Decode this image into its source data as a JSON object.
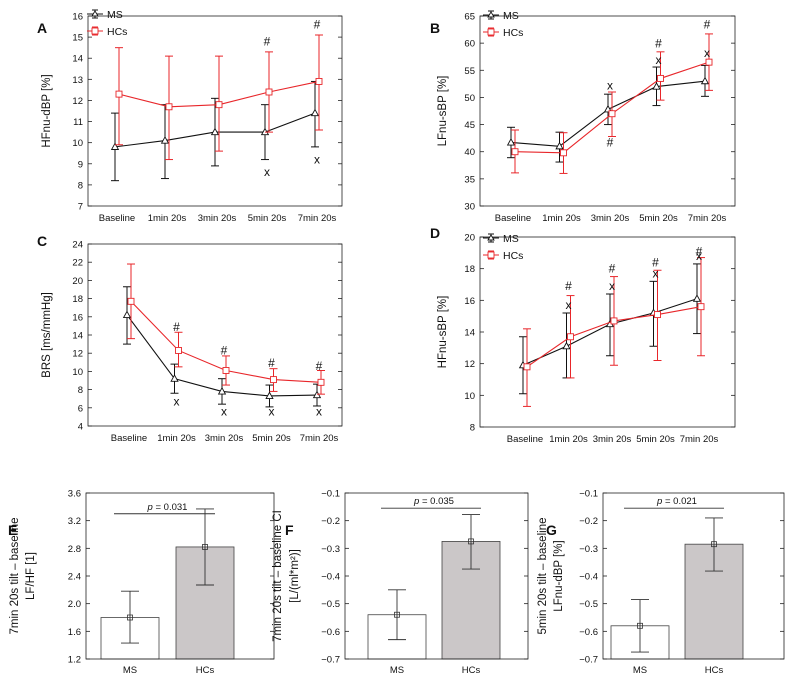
{
  "figure": {
    "background": "#ffffff"
  },
  "colors": {
    "ms": "#111111",
    "hc": "#e8262a",
    "bar_ms": "#ffffff",
    "bar_hc": "#cbc7c8"
  },
  "chart_data": [
    {
      "id": "A",
      "panel_label": "A",
      "type": "line",
      "ylabel": "HFnu-dBP [%]",
      "categories": [
        "Baseline",
        "1min 20s",
        "3min 20s",
        "5min 20s",
        "7min 20s"
      ],
      "ylim": [
        7,
        16
      ],
      "yticks": [
        "7",
        "8",
        "9",
        "10",
        "11",
        "12",
        "13",
        "14",
        "15",
        "16"
      ],
      "legend": [
        "MS",
        "HCs"
      ],
      "legend_position": "top-left",
      "series": [
        {
          "name": "MS",
          "values": [
            9.8,
            10.1,
            10.5,
            10.5,
            11.4
          ],
          "low": [
            8.2,
            8.3,
            8.9,
            9.2,
            9.8
          ],
          "high": [
            11.4,
            11.8,
            12.1,
            11.8,
            12.9
          ]
        },
        {
          "name": "HCs",
          "values": [
            12.3,
            11.7,
            11.8,
            12.4,
            12.9
          ],
          "low": [
            9.9,
            9.2,
            9.6,
            10.5,
            10.6
          ],
          "high": [
            14.5,
            14.1,
            14.1,
            14.3,
            15.1
          ]
        }
      ],
      "annotations": [
        {
          "text": "#",
          "category": "5min 20s",
          "y": 14.8
        },
        {
          "text": "#",
          "category": "7min 20s",
          "y": 15.6
        },
        {
          "text": "x",
          "category": "5min 20s",
          "y": 8.6
        },
        {
          "text": "x",
          "category": "7min 20s",
          "y": 9.2
        }
      ]
    },
    {
      "id": "B",
      "panel_label": "B",
      "type": "line",
      "ylabel": "LFnu-sBP [%]",
      "categories": [
        "Baseline",
        "1min 20s",
        "3min 20s",
        "5min 20s",
        "7min 20s"
      ],
      "ylim": [
        30,
        65
      ],
      "yticks": [
        "30",
        "35",
        "40",
        "45",
        "50",
        "55",
        "60",
        "65"
      ],
      "legend": [
        "MS",
        "HCs"
      ],
      "legend_position": "top-left",
      "series": [
        {
          "name": "MS",
          "values": [
            41.7,
            41.0,
            47.8,
            52.0,
            53.0
          ],
          "low": [
            38.9,
            38.1,
            45.0,
            48.5,
            50.2
          ],
          "high": [
            44.5,
            43.6,
            50.6,
            55.6,
            55.9
          ]
        },
        {
          "name": "HCs",
          "values": [
            40.0,
            39.8,
            47.0,
            53.5,
            56.5
          ],
          "low": [
            36.1,
            36.0,
            42.8,
            49.5,
            51.3
          ],
          "high": [
            44.0,
            43.5,
            51.0,
            58.4,
            61.7
          ]
        }
      ],
      "annotations": [
        {
          "text": "x",
          "category": "3min 20s",
          "y": 52.2
        },
        {
          "text": "#",
          "category": "3min 20s",
          "y": 41.7
        },
        {
          "text": "x",
          "category": "5min 20s",
          "y": 56.9
        },
        {
          "text": "#",
          "category": "5min 20s",
          "y": 59.9
        },
        {
          "text": "x",
          "category": "7min 20s",
          "y": 58.2
        },
        {
          "text": "#",
          "category": "7min 20s",
          "y": 63.4
        }
      ]
    },
    {
      "id": "C",
      "panel_label": "C",
      "type": "line",
      "ylabel": "BRS [ms/mmHg]",
      "categories": [
        "Baseline",
        "1min 20s",
        "3min 20s",
        "5min 20s",
        "7min 20s"
      ],
      "ylim": [
        4,
        24
      ],
      "yticks": [
        "4",
        "6",
        "8",
        "10",
        "12",
        "14",
        "16",
        "18",
        "20",
        "22",
        "24"
      ],
      "series": [
        {
          "name": "MS",
          "values": [
            16.2,
            9.2,
            7.8,
            7.3,
            7.4
          ],
          "low": [
            13.0,
            7.6,
            6.4,
            6.1,
            6.2
          ],
          "high": [
            19.3,
            10.8,
            9.2,
            8.5,
            8.6
          ]
        },
        {
          "name": "HCs",
          "values": [
            17.7,
            12.3,
            10.1,
            9.1,
            8.8
          ],
          "low": [
            13.6,
            10.5,
            8.5,
            7.8,
            7.5
          ],
          "high": [
            21.8,
            14.3,
            11.7,
            10.3,
            10.1
          ]
        }
      ],
      "annotations": [
        {
          "text": "#",
          "category": "1min 20s",
          "y": 14.9
        },
        {
          "text": "#",
          "category": "3min 20s",
          "y": 12.3
        },
        {
          "text": "#",
          "category": "5min 20s",
          "y": 10.9
        },
        {
          "text": "#",
          "category": "7min 20s",
          "y": 10.6
        },
        {
          "text": "x",
          "category": "1min 20s",
          "y": 6.7
        },
        {
          "text": "x",
          "category": "3min 20s",
          "y": 5.6
        },
        {
          "text": "x",
          "category": "5min 20s",
          "y": 5.6
        },
        {
          "text": "x",
          "category": "7min 20s",
          "y": 5.6
        }
      ]
    },
    {
      "id": "D",
      "panel_label": "D",
      "type": "line",
      "ylabel": "HFnu-sBP [%]",
      "categories": [
        "Baseline",
        "1min 20s",
        "3min 20s",
        "5min 20s",
        "7min 20s"
      ],
      "ylim": [
        8,
        20
      ],
      "yticks": [
        "8",
        "10",
        "12",
        "14",
        "16",
        "18",
        "20"
      ],
      "legend": [
        "MS",
        "HCs"
      ],
      "legend_position": "top-left",
      "series": [
        {
          "name": "MS",
          "values": [
            11.9,
            13.1,
            14.5,
            15.2,
            16.1
          ],
          "low": [
            10.1,
            11.1,
            12.5,
            13.1,
            13.9
          ],
          "high": [
            13.7,
            15.2,
            16.4,
            17.2,
            18.3
          ]
        },
        {
          "name": "HCs",
          "values": [
            11.8,
            13.7,
            14.7,
            15.1,
            15.6
          ],
          "low": [
            9.3,
            11.1,
            11.9,
            12.2,
            12.5
          ],
          "high": [
            14.2,
            16.3,
            17.5,
            17.9,
            18.7
          ]
        }
      ],
      "annotations": [
        {
          "text": "x",
          "category": "1min 20s",
          "y": 15.7
        },
        {
          "text": "#",
          "category": "1min 20s",
          "y": 16.9
        },
        {
          "text": "x",
          "category": "3min 20s",
          "y": 16.9
        },
        {
          "text": "#",
          "category": "3min 20s",
          "y": 18.0
        },
        {
          "text": "x",
          "category": "5min 20s",
          "y": 17.7
        },
        {
          "text": "#",
          "category": "5min 20s",
          "y": 18.4
        },
        {
          "text": "x",
          "category": "7min 20s",
          "y": 18.8
        },
        {
          "text": "#",
          "category": "7min 20s",
          "y": 19.1
        }
      ]
    },
    {
      "id": "E",
      "panel_label": "E",
      "type": "bar",
      "ylabel_lines": [
        "7min 20s tilt – baseline",
        "LF/HF [1]"
      ],
      "categories": [
        "MS",
        "HCs"
      ],
      "ylim": [
        1.2,
        3.6
      ],
      "yticks": [
        "1.2",
        "1.6",
        "2.0",
        "2.4",
        "2.8",
        "3.2",
        "3.6"
      ],
      "values": [
        1.8,
        2.82
      ],
      "low": [
        1.43,
        2.27
      ],
      "high": [
        2.18,
        3.37
      ],
      "p_value": {
        "prefix": "p",
        "text": " = 0.031",
        "y": 3.3
      }
    },
    {
      "id": "F",
      "panel_label": "F",
      "type": "bar",
      "ylabel_lines": [
        "7min 20s tilt – baseline CI",
        "[L/(ml*m²)]"
      ],
      "categories": [
        "MS",
        "HCs"
      ],
      "ylim": [
        -0.7,
        -0.1
      ],
      "yticks": [
        "−0.7",
        "−0.6",
        "−0.5",
        "−0.4",
        "−0.3",
        "−0.2",
        "−0.1"
      ],
      "values": [
        -0.54,
        -0.275
      ],
      "low": [
        -0.63,
        -0.375
      ],
      "high": [
        -0.45,
        -0.178
      ],
      "p_value": {
        "prefix": "p",
        "text": " = 0.035",
        "y": -0.155
      }
    },
    {
      "id": "G",
      "panel_label": "G",
      "type": "bar",
      "ylabel_lines": [
        "5min 20s tilt – baseline",
        "LFnu-dBP [%]"
      ],
      "categories": [
        "MS",
        "HCs"
      ],
      "ylim": [
        -0.7,
        -0.1
      ],
      "yticks": [
        "−0.7",
        "−0.6",
        "−0.5",
        "−0.4",
        "−0.3",
        "−0.2",
        "−0.1"
      ],
      "values": [
        -0.58,
        -0.285
      ],
      "low": [
        -0.675,
        -0.382
      ],
      "high": [
        -0.485,
        -0.19
      ],
      "p_value": {
        "prefix": "p",
        "text": " = 0.021",
        "y": -0.155
      }
    }
  ]
}
